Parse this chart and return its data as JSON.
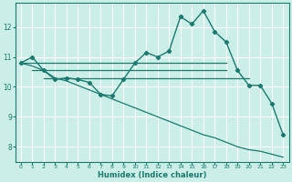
{
  "xlabel": "Humidex (Indice chaleur)",
  "xlim": [
    -0.5,
    23.5
  ],
  "ylim": [
    7.5,
    12.8
  ],
  "yticks": [
    8,
    9,
    10,
    11,
    12
  ],
  "xticks": [
    0,
    1,
    2,
    3,
    4,
    5,
    6,
    7,
    8,
    9,
    10,
    11,
    12,
    13,
    14,
    15,
    16,
    17,
    18,
    19,
    20,
    21,
    22,
    23
  ],
  "bg_color": "#cceee8",
  "grid_color": "#ffffff",
  "line_color": "#1a7a6e",
  "lines": [
    {
      "x": [
        0,
        1,
        2,
        3,
        4,
        5,
        6,
        7,
        8,
        9,
        10,
        11,
        12,
        13,
        14,
        15,
        16,
        17,
        18,
        19,
        20,
        21,
        22,
        23
      ],
      "y": [
        10.8,
        11.0,
        10.55,
        10.25,
        10.3,
        10.25,
        10.15,
        9.75,
        9.7,
        10.25,
        10.8,
        11.15,
        11.0,
        11.2,
        12.35,
        12.1,
        12.55,
        11.85,
        11.5,
        10.55,
        10.05,
        10.05,
        9.45,
        8.4
      ],
      "marker": "D",
      "markersize": 2.2,
      "linewidth": 1.0,
      "has_marker": true
    },
    {
      "x": [
        0,
        1,
        2,
        18
      ],
      "y": [
        10.8,
        10.8,
        10.8,
        10.8
      ],
      "marker": null,
      "markersize": 0,
      "linewidth": 0.9,
      "has_marker": false
    },
    {
      "x": [
        1,
        2,
        3,
        4,
        5,
        6,
        7,
        8,
        9,
        10,
        11,
        12,
        13,
        14,
        15,
        16,
        17,
        18
      ],
      "y": [
        10.55,
        10.55,
        10.55,
        10.55,
        10.55,
        10.55,
        10.55,
        10.55,
        10.55,
        10.55,
        10.55,
        10.55,
        10.55,
        10.55,
        10.55,
        10.55,
        10.55,
        10.55
      ],
      "marker": null,
      "markersize": 0,
      "linewidth": 0.9,
      "has_marker": false
    },
    {
      "x": [
        2,
        3,
        4,
        5,
        6,
        7,
        8,
        9,
        10,
        11,
        12,
        13,
        14,
        15,
        16,
        17,
        18,
        19,
        20
      ],
      "y": [
        10.3,
        10.3,
        10.3,
        10.3,
        10.3,
        10.3,
        10.3,
        10.3,
        10.3,
        10.3,
        10.3,
        10.3,
        10.3,
        10.3,
        10.3,
        10.3,
        10.3,
        10.3,
        10.3
      ],
      "marker": null,
      "markersize": 0,
      "linewidth": 0.9,
      "has_marker": false
    },
    {
      "x": [
        0,
        1,
        2,
        3,
        4,
        5,
        6,
        7,
        8,
        9,
        10,
        11,
        12,
        13,
        14,
        15,
        16,
        17,
        18,
        19,
        20,
        21,
        22,
        23
      ],
      "y": [
        10.8,
        10.7,
        10.55,
        10.3,
        10.2,
        10.05,
        9.9,
        9.75,
        9.6,
        9.45,
        9.3,
        9.15,
        9.0,
        8.85,
        8.7,
        8.55,
        8.4,
        8.3,
        8.15,
        8.0,
        7.9,
        7.85,
        7.75,
        7.65
      ],
      "marker": null,
      "markersize": 0,
      "linewidth": 0.9,
      "has_marker": false
    }
  ]
}
